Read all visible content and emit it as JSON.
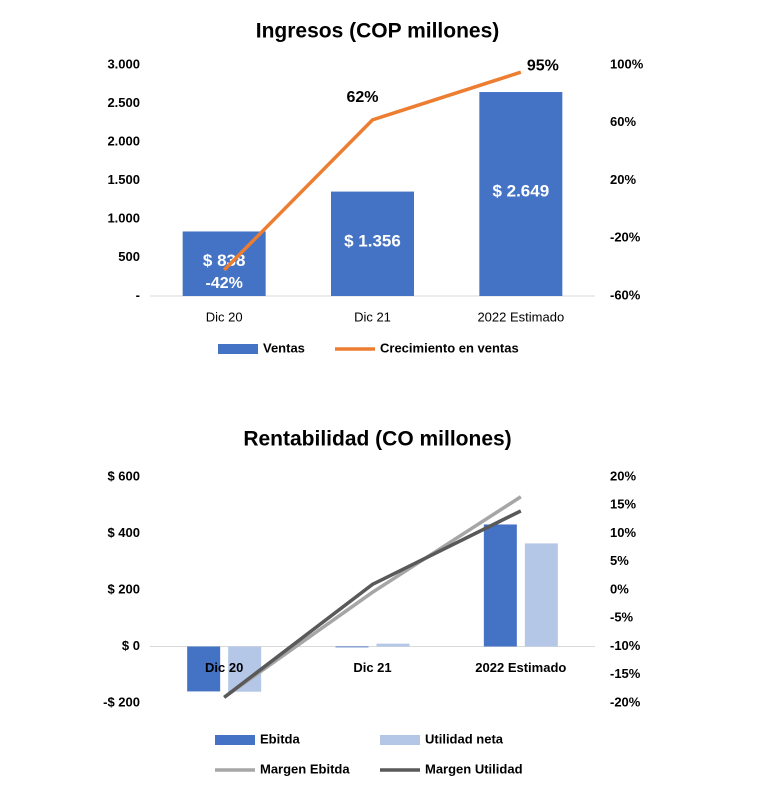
{
  "chart_data": [
    {
      "type": "combo",
      "title": "Ingresos (COP millones)",
      "categories": [
        "Dic 20",
        "Dic 21",
        "2022 Estimado"
      ],
      "series": [
        {
          "name": "Ventas",
          "kind": "bar",
          "color": "#4472c4",
          "values": [
            838,
            1356,
            2649
          ],
          "value_labels": [
            "$ 838",
            "$ 1.356",
            "$ 2.649"
          ]
        },
        {
          "name": "Crecimiento en ventas",
          "kind": "line",
          "axis": "y2",
          "color": "#ed7d31",
          "values": [
            -42,
            62,
            95
          ],
          "value_labels": [
            "-42%",
            "62%",
            "95%"
          ]
        }
      ],
      "ylim": [
        0,
        3000
      ],
      "yticks": [
        {
          "value": 0,
          "label": "-"
        },
        500,
        {
          "value": 1000,
          "label": "1.000"
        },
        {
          "value": 1500,
          "label": "1.500"
        },
        {
          "value": 2000,
          "label": "2.000"
        },
        {
          "value": 2500,
          "label": "2.500"
        },
        {
          "value": 3000,
          "label": "3.000"
        }
      ],
      "y2lim": [
        -60,
        100
      ],
      "y2ticks": [
        {
          "value": -60,
          "label": "-60%"
        },
        {
          "value": -20,
          "label": "-20%"
        },
        {
          "value": 20,
          "label": "20%"
        },
        {
          "value": 60,
          "label": "60%"
        },
        {
          "value": 100,
          "label": "100%"
        }
      ]
    },
    {
      "type": "combo",
      "title": "Rentabilidad (CO millones)",
      "categories": [
        "Dic 20",
        "Dic 21",
        "2022 Estimado"
      ],
      "series": [
        {
          "name": "Ebitda",
          "kind": "bar",
          "color": "#4472c4",
          "values": [
            -159,
            -3,
            432
          ]
        },
        {
          "name": "Utilidad neta",
          "kind": "bar",
          "color": "#b4c7e7",
          "values": [
            -160,
            10,
            365
          ]
        },
        {
          "name": "Margen Ebitda",
          "kind": "line",
          "axis": "y2",
          "color": "#a6a6a6",
          "values": [
            -19,
            -0.4,
            16.5
          ]
        },
        {
          "name": "Margen Utilidad",
          "kind": "line",
          "axis": "y2",
          "color": "#595959",
          "values": [
            -19,
            1,
            14
          ]
        }
      ],
      "ylim": [
        -200,
        600
      ],
      "yticks": [
        {
          "value": -200,
          "label": "-$ 200"
        },
        {
          "value": 0,
          "label": "$ 0"
        },
        {
          "value": 200,
          "label": "$ 200"
        },
        {
          "value": 400,
          "label": "$ 400"
        },
        {
          "value": 600,
          "label": "$ 600"
        }
      ],
      "y2lim": [
        -20,
        20
      ],
      "y2ticks": [
        {
          "value": -20,
          "label": "-20%"
        },
        {
          "value": -15,
          "label": "-15%"
        },
        {
          "value": -10,
          "label": "-10%"
        },
        {
          "value": -5,
          "label": "-5%"
        },
        {
          "value": 0,
          "label": "0%"
        },
        {
          "value": 5,
          "label": "5%"
        },
        {
          "value": 10,
          "label": "10%"
        },
        {
          "value": 15,
          "label": "15%"
        },
        {
          "value": 20,
          "label": "20%"
        }
      ]
    }
  ]
}
